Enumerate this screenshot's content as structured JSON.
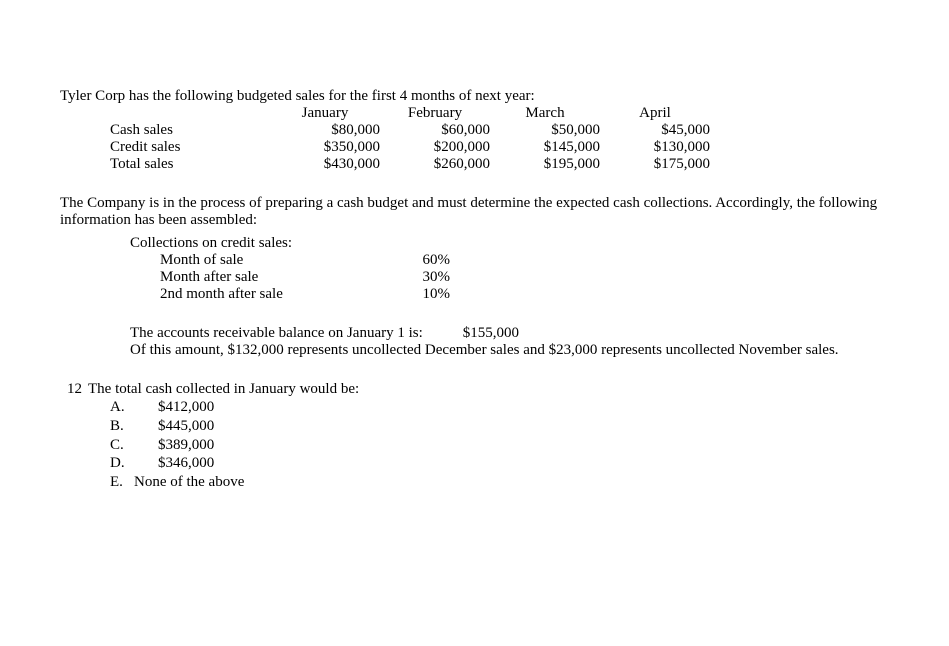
{
  "intro": "Tyler Corp has the following budgeted sales for the first 4 months of next year:",
  "sales_table": {
    "columns": [
      "January",
      "February",
      "March",
      "April"
    ],
    "rows": [
      {
        "label": "Cash sales",
        "values": [
          "$80,000",
          "$60,000",
          "$50,000",
          "$45,000"
        ]
      },
      {
        "label": "Credit sales",
        "values": [
          "$350,000",
          "$200,000",
          "$145,000",
          "$130,000"
        ]
      },
      {
        "label": "Total sales",
        "values": [
          "$430,000",
          "$260,000",
          "$195,000",
          "$175,000"
        ]
      }
    ]
  },
  "para2": "The Company is in the process of preparing a cash budget and must determine the expected cash collections. Accordingly, the following information has been assembled:",
  "collections": {
    "title": "Collections on credit sales:",
    "rows": [
      {
        "label": "Month of sale",
        "pct": "60%"
      },
      {
        "label": "Month after sale",
        "pct": "30%"
      },
      {
        "label": "2nd month after sale",
        "pct": "10%"
      }
    ]
  },
  "ar": {
    "line1_left": "The accounts receivable balance on January 1 is:",
    "line1_amount": "$155,000",
    "line2": "Of this amount, $132,000 represents uncollected December sales and $23,000 represents uncollected November sales."
  },
  "question": {
    "number": "12",
    "stem": "The total cash collected in January would be:",
    "options": {
      "A": "$412,000",
      "B": "$445,000",
      "C": "$389,000",
      "D": "$346,000",
      "E": "None of the above"
    }
  }
}
